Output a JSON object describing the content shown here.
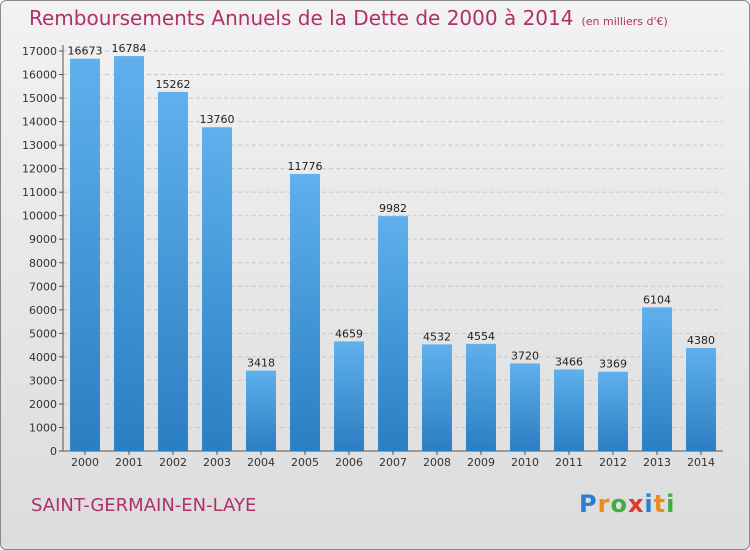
{
  "header": {
    "title": "Remboursements Annuels de la Dette de 2000 à 2014",
    "subtitle": "(en milliers d'€)"
  },
  "footer": {
    "commune": "SAINT-GERMAIN-EN-LAYE",
    "logo_letters": [
      "P",
      "r",
      "o",
      "x",
      "i",
      "t",
      "i"
    ],
    "logo_colors": [
      "#2a7fd0",
      "#f08a1c",
      "#3fae3f",
      "#e03a2f",
      "#2a7fd0",
      "#f08a1c",
      "#3fae3f"
    ]
  },
  "colors": {
    "title": "#b0306a",
    "bar_light": "#5fb0ec",
    "bar_dark": "#2a7ec2",
    "grid": "#c8c8c8"
  },
  "chart_data": {
    "type": "bar",
    "categories": [
      "2000",
      "2001",
      "2002",
      "2003",
      "2004",
      "2005",
      "2006",
      "2007",
      "2008",
      "2009",
      "2010",
      "2011",
      "2012",
      "2013",
      "2014"
    ],
    "values": [
      16673,
      16784,
      15262,
      13760,
      3418,
      11776,
      4659,
      9982,
      4532,
      4554,
      3720,
      3466,
      3369,
      6104,
      4380
    ],
    "ylim": [
      0,
      17000
    ],
    "ytick_step": 1000,
    "xlabel": "",
    "ylabel": "",
    "grid": true,
    "data_labels": true
  }
}
